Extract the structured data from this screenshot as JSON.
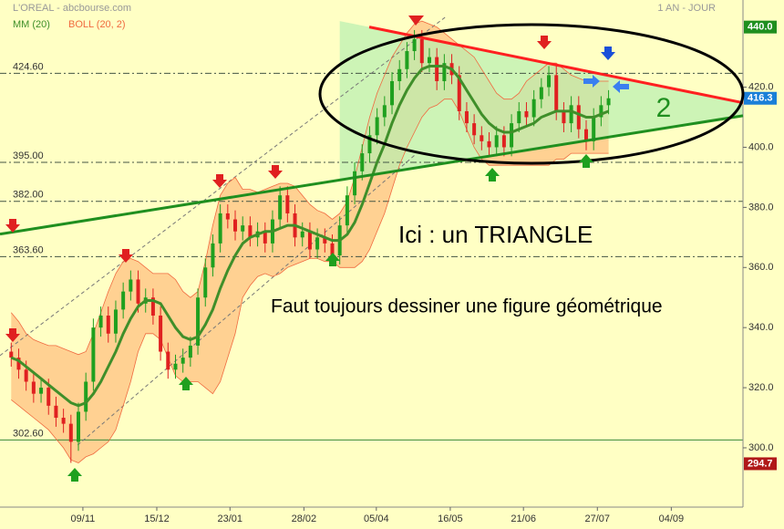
{
  "chart_data": {
    "type": "candlestick",
    "title": "L'OREAL - abcbourse.com",
    "period": "1 AN - JOUR",
    "open": [
      332,
      330,
      326,
      322,
      318,
      320,
      314,
      310,
      308,
      302,
      312,
      322,
      340,
      344,
      338,
      346,
      352,
      356,
      348,
      350,
      344,
      332,
      326,
      328,
      330,
      334,
      350,
      360,
      368,
      378,
      376,
      372,
      374,
      370,
      372,
      368,
      376,
      384,
      378,
      370,
      372,
      366,
      370,
      368,
      364,
      374,
      384,
      392,
      398,
      404,
      410,
      414,
      422,
      426,
      432,
      436,
      428,
      430,
      422,
      428,
      424,
      412,
      408,
      404,
      402,
      400,
      404,
      400,
      408,
      412,
      410,
      416,
      420,
      424,
      412,
      408,
      414,
      406,
      402,
      410,
      414
    ],
    "high": [
      335,
      333,
      329,
      325,
      323,
      323,
      317,
      313,
      311,
      315,
      325,
      343,
      347,
      347,
      349,
      355,
      359,
      359,
      353,
      353,
      347,
      335,
      331,
      333,
      337,
      353,
      363,
      371,
      381,
      381,
      379,
      377,
      377,
      375,
      375,
      379,
      387,
      387,
      381,
      375,
      375,
      373,
      373,
      371,
      377,
      387,
      395,
      401,
      407,
      413,
      417,
      425,
      429,
      435,
      439,
      439,
      433,
      433,
      431,
      431,
      427,
      415,
      411,
      407,
      405,
      407,
      407,
      411,
      415,
      415,
      419,
      423,
      427,
      427,
      415,
      417,
      417,
      409,
      413,
      417,
      419
    ],
    "low": [
      327,
      323,
      319,
      315,
      315,
      311,
      307,
      305,
      295,
      299,
      309,
      319,
      337,
      335,
      335,
      343,
      349,
      345,
      345,
      341,
      329,
      323,
      323,
      325,
      327,
      331,
      347,
      357,
      365,
      373,
      369,
      369,
      367,
      367,
      365,
      365,
      373,
      375,
      367,
      367,
      363,
      363,
      365,
      361,
      361,
      371,
      381,
      389,
      395,
      401,
      407,
      411,
      419,
      423,
      429,
      425,
      425,
      419,
      419,
      421,
      409,
      405,
      401,
      399,
      397,
      397,
      397,
      397,
      405,
      407,
      407,
      413,
      417,
      409,
      405,
      405,
      403,
      399,
      399,
      407,
      411
    ],
    "close": [
      330,
      326,
      322,
      318,
      320,
      314,
      310,
      308,
      302,
      312,
      322,
      340,
      344,
      338,
      346,
      352,
      356,
      348,
      350,
      344,
      332,
      326,
      328,
      330,
      334,
      350,
      360,
      368,
      378,
      376,
      372,
      374,
      370,
      372,
      368,
      376,
      384,
      378,
      370,
      372,
      366,
      370,
      368,
      364,
      374,
      384,
      392,
      398,
      404,
      410,
      414,
      422,
      426,
      432,
      436,
      428,
      430,
      422,
      428,
      424,
      412,
      408,
      404,
      402,
      400,
      404,
      400,
      408,
      412,
      410,
      416,
      420,
      424,
      412,
      408,
      414,
      406,
      402,
      410,
      414,
      416.3
    ],
    "up_color": "#1fa01f",
    "down_color": "#e02020",
    "indicators": [
      {
        "name": "MM (20)",
        "color": "#3f8f2a",
        "values": [
          330,
          329,
          327,
          325,
          323,
          321,
          319,
          317,
          315,
          314,
          315,
          318,
          322,
          327,
          332,
          338,
          343,
          347,
          349,
          349,
          348,
          344,
          340,
          337,
          336,
          337,
          341,
          346,
          353,
          359,
          364,
          368,
          370,
          371,
          372,
          372,
          373,
          374,
          374,
          373,
          372,
          371,
          370,
          369,
          369,
          371,
          375,
          381,
          388,
          395,
          401,
          408,
          414,
          419,
          423,
          426,
          427,
          427,
          427,
          426,
          423,
          419,
          415,
          411,
          408,
          406,
          405,
          405,
          406,
          407,
          408,
          410,
          411,
          412,
          412,
          412,
          411,
          410,
          410,
          411,
          412
        ]
      },
      {
        "name": "BOLL (20, 2)",
        "color": "#f06a40",
        "fill": "#ffc98a",
        "upper": [
          345,
          342,
          338,
          336,
          335,
          334,
          334,
          333,
          332,
          331,
          332,
          338,
          345,
          352,
          358,
          362,
          363,
          362,
          360,
          358,
          358,
          358,
          356,
          352,
          350,
          352,
          362,
          374,
          384,
          388,
          390,
          386,
          386,
          385,
          386,
          387,
          388,
          388,
          387,
          384,
          381,
          379,
          378,
          376,
          378,
          382,
          390,
          400,
          410,
          418,
          424,
          430,
          434,
          438,
          441,
          442,
          441,
          440,
          438,
          436,
          434,
          432,
          430,
          426,
          422,
          418,
          416,
          416,
          418,
          422,
          424,
          426,
          428,
          428,
          426,
          424,
          423,
          422,
          422,
          422,
          422
        ],
        "lower": [
          316,
          314,
          312,
          310,
          308,
          306,
          303,
          300,
          296,
          295,
          297,
          298,
          300,
          302,
          306,
          314,
          322,
          332,
          338,
          338,
          336,
          330,
          324,
          322,
          322,
          322,
          320,
          318,
          322,
          330,
          338,
          350,
          354,
          357,
          358,
          357,
          358,
          360,
          361,
          362,
          363,
          363,
          362,
          362,
          360,
          360,
          360,
          362,
          366,
          372,
          378,
          386,
          394,
          400,
          405,
          410,
          413,
          414,
          416,
          416,
          412,
          406,
          400,
          396,
          394,
          394,
          394,
          394,
          394,
          394,
          394,
          394,
          394,
          396,
          396,
          398,
          398,
          398,
          398,
          398,
          398
        ]
      }
    ],
    "xlim": [
      -1.5,
      98
    ],
    "xticks": [
      {
        "value": 9.6,
        "label": "09/11"
      },
      {
        "value": 19.5,
        "label": "15/12"
      },
      {
        "value": 29.3,
        "label": "23/01"
      },
      {
        "value": 39.2,
        "label": "28/02"
      },
      {
        "value": 48.9,
        "label": "05/04"
      },
      {
        "value": 58.8,
        "label": "16/05"
      },
      {
        "value": 68.6,
        "label": "21/06"
      },
      {
        "value": 78.5,
        "label": "27/07"
      },
      {
        "value": 88.4,
        "label": "04/09"
      }
    ],
    "ylim": [
      283,
      449
    ],
    "yticks": [
      {
        "value": 300,
        "label": "300.0"
      },
      {
        "value": 320,
        "label": "320.0"
      },
      {
        "value": 340,
        "label": "340.0"
      },
      {
        "value": 360,
        "label": "360.0"
      },
      {
        "value": 380,
        "label": "380.0"
      },
      {
        "value": 400,
        "label": "400.0"
      },
      {
        "value": 420,
        "label": "420.0"
      }
    ],
    "levels": [
      {
        "value": 424.6,
        "label": "424.60"
      },
      {
        "value": 395,
        "label": "395.00"
      },
      {
        "value": 382,
        "label": "382.00"
      },
      {
        "value": 363.6,
        "label": "363.60"
      },
      {
        "value": 302.6,
        "label": "302.60"
      }
    ],
    "price_tags": [
      {
        "value": 440,
        "label": "440.0",
        "color": "#1f8f1f"
      },
      {
        "value": 416.3,
        "label": "416.3",
        "color": "#1a7fd8"
      },
      {
        "value": 294.7,
        "label": "294.7",
        "color": "#b01818"
      }
    ],
    "trendlines": [
      {
        "color": "#ff2020",
        "x": [
          47.95,
          98
        ],
        "y": [
          440,
          414.8
        ]
      },
      {
        "color": "#1f8f1f",
        "x": [
          -1.5,
          98
        ],
        "y": [
          371.1,
          410.5
        ]
      }
    ],
    "channels": [
      {
        "color": "#777777",
        "x": [
          -1.5,
          58.3
        ],
        "y": [
          330.7,
          443.6
        ]
      },
      {
        "color": "#777777",
        "x": [
          8.9,
          54.1
        ],
        "y": [
          300.9,
          397.5
        ]
      }
    ],
    "annotations": [
      "Ici : un TRIANGLE",
      "Faut toujours dessiner une figure géométrique",
      "2"
    ]
  }
}
